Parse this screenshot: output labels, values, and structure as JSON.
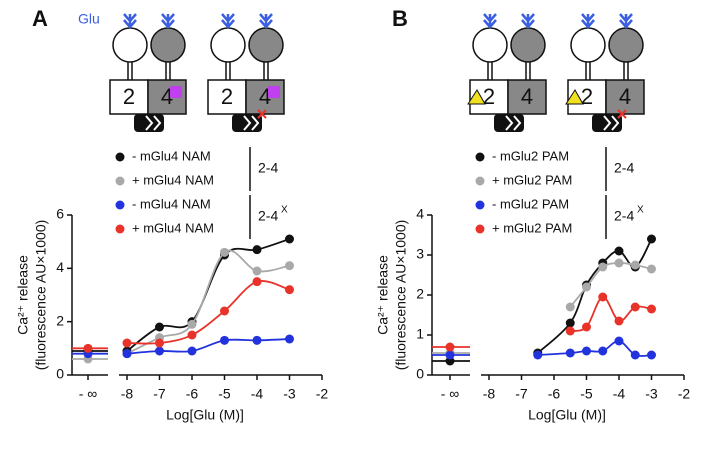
{
  "chart_data": [
    {
      "type": "line",
      "panel_label": "A",
      "annotation": "Glu",
      "subunit_labels": [
        "2",
        "4"
      ],
      "y_label": [
        "Ca²⁺ release",
        "(fluorescence AU×1000)"
      ],
      "x_label": "Log[Glu (M)]",
      "x_break_label": "- ∞",
      "x": [
        -8,
        -7,
        -6,
        -5,
        -4,
        -3
      ],
      "xlim": [
        -8,
        -2
      ],
      "xticks": [
        -8,
        -7,
        -6,
        -5,
        -4,
        -3,
        -2
      ],
      "ylim": [
        0,
        6
      ],
      "yticks": [
        0,
        2,
        4,
        6
      ],
      "legend_groups": [
        {
          "label": "2-4"
        },
        {
          "label": "2-4",
          "superscript": "X"
        }
      ],
      "series": [
        {
          "name": "- mGlu4 NAM",
          "color": "#111111",
          "baseline": 0.9,
          "values": [
            0.9,
            1.8,
            2.0,
            4.5,
            4.7,
            5.1
          ]
        },
        {
          "name": "+ mGlu4 NAM",
          "color": "#a9a9a9",
          "baseline": 0.6,
          "values": [
            0.8,
            1.4,
            1.9,
            4.6,
            3.9,
            4.1
          ]
        },
        {
          "name": "- mGlu4 NAM",
          "color": "#2233dd",
          "baseline": 0.8,
          "values": [
            0.8,
            0.9,
            0.9,
            1.3,
            1.3,
            1.35
          ]
        },
        {
          "name": "+ mGlu4 NAM",
          "color": "#e8332a",
          "baseline": 1.0,
          "values": [
            1.2,
            1.2,
            1.5,
            2.4,
            3.5,
            3.2
          ]
        }
      ]
    },
    {
      "type": "line",
      "panel_label": "B",
      "subunit_labels": [
        "2",
        "4"
      ],
      "y_label": [
        "Ca²⁺ release",
        "(fluorescence AU×1000)"
      ],
      "x_label": "Log[Glu (M)]",
      "x_break_label": "- ∞",
      "x": [
        -6.5,
        -5.5,
        -5,
        -4.5,
        -4,
        -3.5,
        -3
      ],
      "xlim": [
        -8,
        -2
      ],
      "xticks": [
        -8,
        -7,
        -6,
        -5,
        -4,
        -3,
        -2
      ],
      "ylim": [
        0,
        4
      ],
      "yticks": [
        0,
        1,
        2,
        3,
        4
      ],
      "legend_groups": [
        {
          "label": "2-4"
        },
        {
          "label": "2-4",
          "superscript": "X"
        }
      ],
      "series": [
        {
          "name": "- mGlu2 PAM",
          "color": "#111111",
          "baseline": 0.35,
          "values": [
            0.55,
            1.3,
            2.25,
            2.8,
            3.1,
            2.7,
            3.4
          ]
        },
        {
          "name": "+ mGlu2 PAM",
          "color": "#a9a9a9",
          "baseline": 0.55,
          "values": [
            null,
            1.7,
            2.2,
            2.7,
            2.8,
            2.75,
            2.65
          ]
        },
        {
          "name": "- mGlu2 PAM",
          "color": "#2233dd",
          "baseline": 0.5,
          "values": [
            0.5,
            0.55,
            0.6,
            0.6,
            0.85,
            0.5,
            0.5
          ]
        },
        {
          "name": "+ mGlu2 PAM",
          "color": "#e8332a",
          "baseline": 0.7,
          "values": [
            null,
            1.1,
            1.2,
            1.95,
            1.35,
            1.7,
            1.65
          ]
        }
      ]
    }
  ]
}
